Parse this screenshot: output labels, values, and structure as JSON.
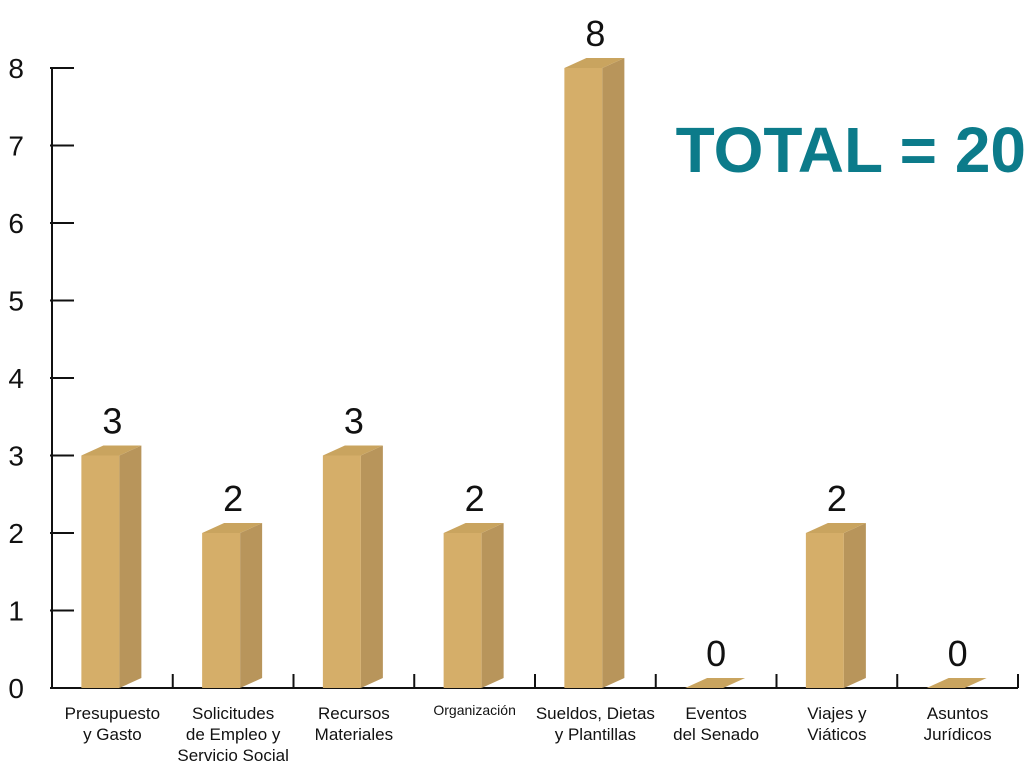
{
  "chart_data": {
    "type": "bar",
    "categories": [
      [
        "Presupuesto",
        "y Gasto"
      ],
      [
        "Solicitudes",
        "de Empleo y",
        "Servicio Social"
      ],
      [
        "Recursos",
        "Materiales"
      ],
      [
        "Organización"
      ],
      [
        "Sueldos, Dietas",
        "y Plantillas"
      ],
      [
        "Eventos",
        "del Senado"
      ],
      [
        "Viajes y",
        "Viáticos"
      ],
      [
        "Asuntos",
        "Jurídicos"
      ]
    ],
    "values": [
      3,
      2,
      3,
      2,
      8,
      0,
      2,
      0
    ],
    "value_labels": [
      "3",
      "2",
      "3",
      "2",
      "8",
      "0",
      "2",
      "0"
    ],
    "y_ticks": [
      "0",
      "1",
      "2",
      "3",
      "4",
      "5",
      "6",
      "7",
      "8"
    ],
    "ylim": [
      0,
      8
    ],
    "title": "",
    "xlabel": "",
    "ylabel": "",
    "grid": false,
    "colors": {
      "bar_front": "#d5ae69",
      "bar_side": "#b8955b",
      "bar_top": "#c9a45f",
      "total": "#0c7b8a"
    }
  },
  "total_label": "TOTAL = 20"
}
